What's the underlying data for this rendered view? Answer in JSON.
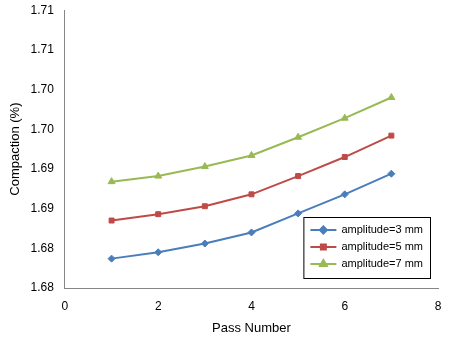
{
  "chart_data": {
    "type": "line",
    "x_label": "Pass Number",
    "y_label": "Compaction (%)",
    "x": [
      1,
      2,
      3,
      4,
      5,
      6,
      7
    ],
    "series": [
      {
        "name": "amplitude=3 mm",
        "color": "#4a7ebb",
        "marker": "diamond",
        "values": [
          1.6837,
          1.6845,
          1.6856,
          1.687,
          1.6894,
          1.6918,
          1.6944
        ]
      },
      {
        "name": "amplitude=5 mm",
        "color": "#be4b48",
        "marker": "square",
        "values": [
          1.6885,
          1.6893,
          1.6903,
          1.6918,
          1.6941,
          1.6965,
          1.6992
        ]
      },
      {
        "name": "amplitude=7 mm",
        "color": "#98b954",
        "marker": "triangle",
        "values": [
          1.6934,
          1.6941,
          1.6953,
          1.6967,
          1.699,
          1.7014,
          1.704
        ]
      }
    ],
    "xlim": [
      0,
      8
    ],
    "xticks": [
      0,
      2,
      4,
      6,
      8
    ],
    "ylim": [
      1.68,
      1.715
    ],
    "yticks": [
      {
        "value": 1.68,
        "label": "1.68"
      },
      {
        "value": 1.685,
        "label": "1.68"
      },
      {
        "value": 1.69,
        "label": "1.69"
      },
      {
        "value": 1.695,
        "label": "1.69"
      },
      {
        "value": 1.7,
        "label": "1.70"
      },
      {
        "value": 1.705,
        "label": "1.70"
      },
      {
        "value": 1.71,
        "label": "1.71"
      },
      {
        "value": 1.715,
        "label": "1.71"
      }
    ],
    "grid": false,
    "legend": "lower right"
  }
}
